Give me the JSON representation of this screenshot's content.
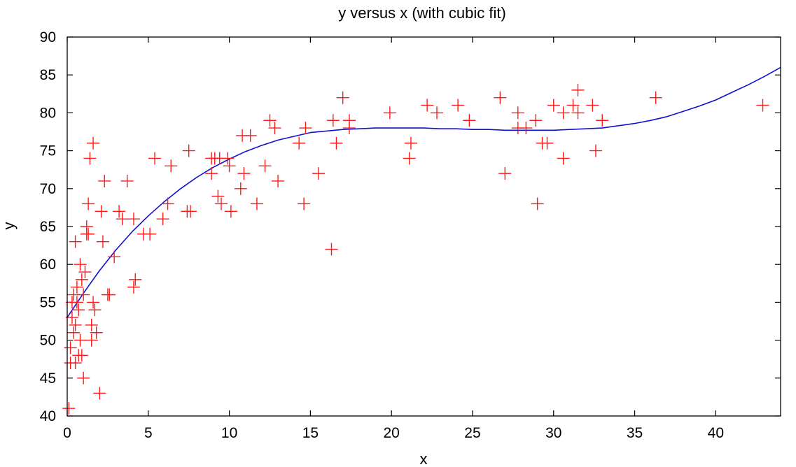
{
  "chart_data": {
    "type": "scatter",
    "title": "y versus x (with cubic fit)",
    "xlabel": "x",
    "ylabel": "y",
    "xlim": [
      0,
      44
    ],
    "ylim": [
      40,
      90
    ],
    "x_ticks": [
      0,
      5,
      10,
      15,
      20,
      25,
      30,
      35,
      40
    ],
    "y_ticks": [
      40,
      45,
      50,
      55,
      60,
      65,
      70,
      75,
      80,
      85,
      90
    ],
    "grid": false,
    "legend": "none",
    "colors": {
      "points": "#ff1a1a",
      "fit": "#1010d0",
      "axes": "#000000"
    },
    "series": [
      {
        "marker": "plus",
        "points": [
          [
            0.1,
            41
          ],
          [
            0.2,
            49
          ],
          [
            0.2,
            47
          ],
          [
            0.3,
            53
          ],
          [
            0.3,
            55
          ],
          [
            0.4,
            51
          ],
          [
            0.4,
            56
          ],
          [
            0.5,
            52
          ],
          [
            0.5,
            47
          ],
          [
            0.5,
            63
          ],
          [
            0.6,
            55
          ],
          [
            0.6,
            57
          ],
          [
            0.7,
            54
          ],
          [
            0.7,
            48
          ],
          [
            0.8,
            60
          ],
          [
            0.8,
            50
          ],
          [
            0.9,
            58
          ],
          [
            0.9,
            48
          ],
          [
            1.0,
            56
          ],
          [
            1.0,
            45
          ],
          [
            1.1,
            59
          ],
          [
            1.2,
            64
          ],
          [
            1.2,
            65
          ],
          [
            1.3,
            64
          ],
          [
            1.3,
            68
          ],
          [
            1.4,
            74
          ],
          [
            1.5,
            52
          ],
          [
            1.5,
            50
          ],
          [
            1.6,
            76
          ],
          [
            1.6,
            55
          ],
          [
            1.7,
            54
          ],
          [
            1.8,
            51
          ],
          [
            2.0,
            43
          ],
          [
            2.1,
            67
          ],
          [
            2.2,
            63
          ],
          [
            2.3,
            71
          ],
          [
            2.5,
            56
          ],
          [
            2.6,
            56
          ],
          [
            2.9,
            61
          ],
          [
            3.2,
            67
          ],
          [
            3.4,
            66
          ],
          [
            3.7,
            71
          ],
          [
            4.1,
            66
          ],
          [
            4.1,
            57
          ],
          [
            4.2,
            58
          ],
          [
            4.7,
            64
          ],
          [
            5.1,
            64
          ],
          [
            5.4,
            74
          ],
          [
            5.9,
            66
          ],
          [
            6.2,
            68
          ],
          [
            6.4,
            73
          ],
          [
            7.4,
            67
          ],
          [
            7.6,
            67
          ],
          [
            7.5,
            75
          ],
          [
            8.9,
            74
          ],
          [
            8.9,
            72
          ],
          [
            9.1,
            74
          ],
          [
            9.3,
            69
          ],
          [
            9.4,
            74
          ],
          [
            9.5,
            68
          ],
          [
            9.9,
            74
          ],
          [
            10.0,
            73
          ],
          [
            10.1,
            67
          ],
          [
            10.7,
            70
          ],
          [
            10.8,
            77
          ],
          [
            10.9,
            72
          ],
          [
            11.3,
            77
          ],
          [
            11.7,
            68
          ],
          [
            12.2,
            73
          ],
          [
            12.5,
            79
          ],
          [
            12.8,
            78
          ],
          [
            13.0,
            71
          ],
          [
            14.3,
            76
          ],
          [
            14.6,
            68
          ],
          [
            14.7,
            78
          ],
          [
            15.5,
            72
          ],
          [
            16.3,
            62
          ],
          [
            16.4,
            79
          ],
          [
            16.6,
            76
          ],
          [
            17.0,
            82
          ],
          [
            17.4,
            78
          ],
          [
            17.4,
            79
          ],
          [
            19.9,
            80
          ],
          [
            21.1,
            74
          ],
          [
            21.2,
            76
          ],
          [
            22.2,
            81
          ],
          [
            22.8,
            80
          ],
          [
            24.1,
            81
          ],
          [
            24.8,
            79
          ],
          [
            26.7,
            82
          ],
          [
            27.0,
            72
          ],
          [
            27.8,
            78
          ],
          [
            27.8,
            80
          ],
          [
            28.3,
            78
          ],
          [
            28.9,
            79
          ],
          [
            29.0,
            68
          ],
          [
            29.3,
            76
          ],
          [
            29.6,
            76
          ],
          [
            30.0,
            81
          ],
          [
            30.6,
            80
          ],
          [
            30.6,
            74
          ],
          [
            31.2,
            81
          ],
          [
            31.5,
            83
          ],
          [
            31.5,
            80
          ],
          [
            32.4,
            81
          ],
          [
            32.6,
            75
          ],
          [
            33.0,
            79
          ],
          [
            36.3,
            82
          ],
          [
            42.9,
            81
          ]
        ]
      },
      {
        "marker": "line",
        "fit": "cubic",
        "points": [
          [
            0,
            53.0
          ],
          [
            1,
            56.2
          ],
          [
            2,
            59.2
          ],
          [
            3,
            61.9
          ],
          [
            4,
            64.3
          ],
          [
            5,
            66.4
          ],
          [
            6,
            68.3
          ],
          [
            7,
            70.0
          ],
          [
            8,
            71.5
          ],
          [
            9,
            72.8
          ],
          [
            10,
            73.9
          ],
          [
            11,
            74.9
          ],
          [
            12,
            75.7
          ],
          [
            13,
            76.4
          ],
          [
            14,
            76.9
          ],
          [
            15,
            77.4
          ],
          [
            16,
            77.6
          ],
          [
            17,
            77.8
          ],
          [
            18,
            77.9
          ],
          [
            19,
            78.0
          ],
          [
            20,
            78.0
          ],
          [
            21,
            78.0
          ],
          [
            22,
            78.0
          ],
          [
            23,
            77.9
          ],
          [
            24,
            77.9
          ],
          [
            25,
            77.8
          ],
          [
            26,
            77.8
          ],
          [
            27,
            77.7
          ],
          [
            28,
            77.7
          ],
          [
            29,
            77.7
          ],
          [
            30,
            77.7
          ],
          [
            31,
            77.8
          ],
          [
            32,
            77.9
          ],
          [
            33,
            78.0
          ],
          [
            34,
            78.3
          ],
          [
            35,
            78.6
          ],
          [
            36,
            79.0
          ],
          [
            37,
            79.5
          ],
          [
            38,
            80.2
          ],
          [
            39,
            80.9
          ],
          [
            40,
            81.7
          ],
          [
            41,
            82.7
          ],
          [
            42,
            83.7
          ],
          [
            43,
            84.8
          ],
          [
            44,
            86.0
          ]
        ]
      }
    ]
  }
}
